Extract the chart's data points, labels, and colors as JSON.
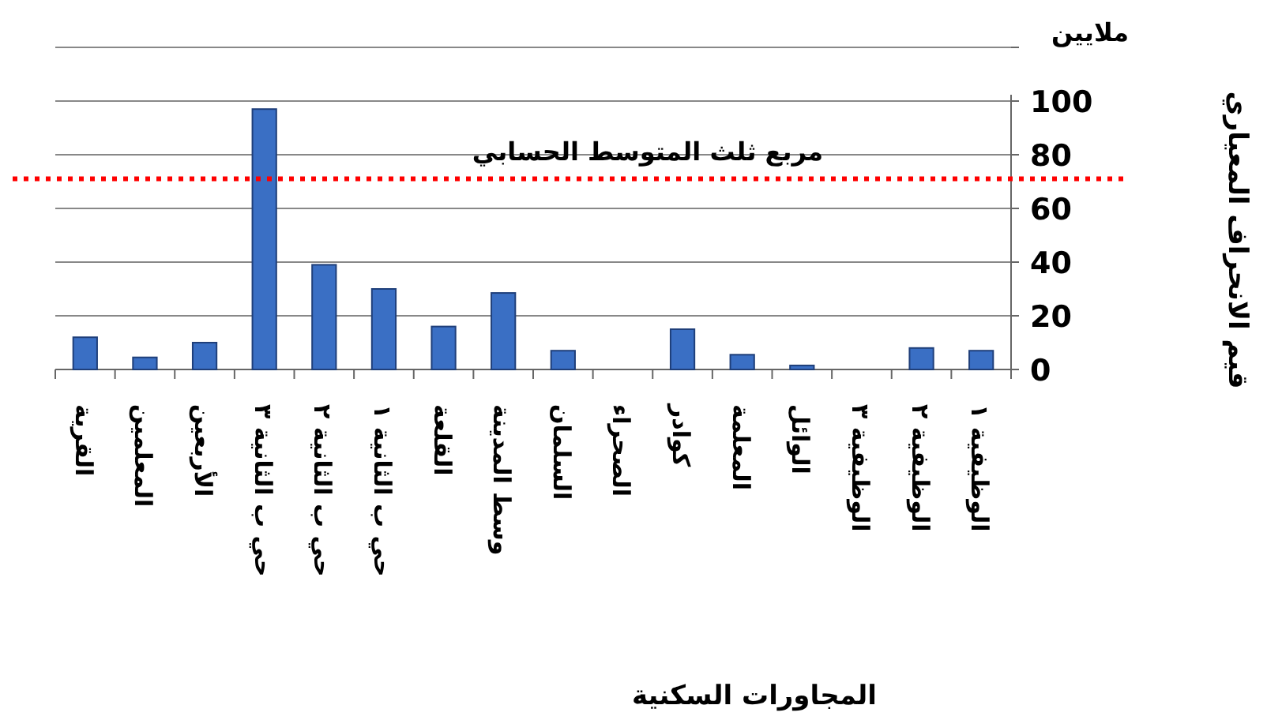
{
  "chart_data": {
    "type": "bar",
    "categories": [
      "القرية",
      "المعلمين",
      "الأربعين",
      "حي ب الثانية ٣",
      "حي ب الثانية ٢",
      "حي ب الثانية ١",
      "القلعة",
      "وسط المدينة",
      "السلمان",
      "الصحراء",
      "كوادر",
      "المعلمة",
      "الوائل",
      "الوظيفية ٣",
      "الوظيفية ٢",
      "الوظيفية ١"
    ],
    "values": [
      12,
      4.5,
      10,
      97,
      39,
      30,
      16,
      28.5,
      7,
      0,
      15,
      5.5,
      1.5,
      0,
      8,
      7
    ],
    "color": "#3a6fc4",
    "ylim": [
      0,
      120
    ],
    "yticks": [
      0,
      20,
      40,
      60,
      80,
      100,
      {
        "value": 120,
        "label": null
      }
    ],
    "grid": "y",
    "xlabel": "المجاورات السكنية",
    "ylabel": "قيم الانحراف المعياري",
    "annotations": [
      "ملايين"
    ],
    "ref_lines": [
      {
        "axis": "y",
        "value": 71,
        "label": "مربع ثلث المتوسط الحسابي",
        "color": "#ff0000",
        "line_style": "dotted"
      }
    ]
  }
}
